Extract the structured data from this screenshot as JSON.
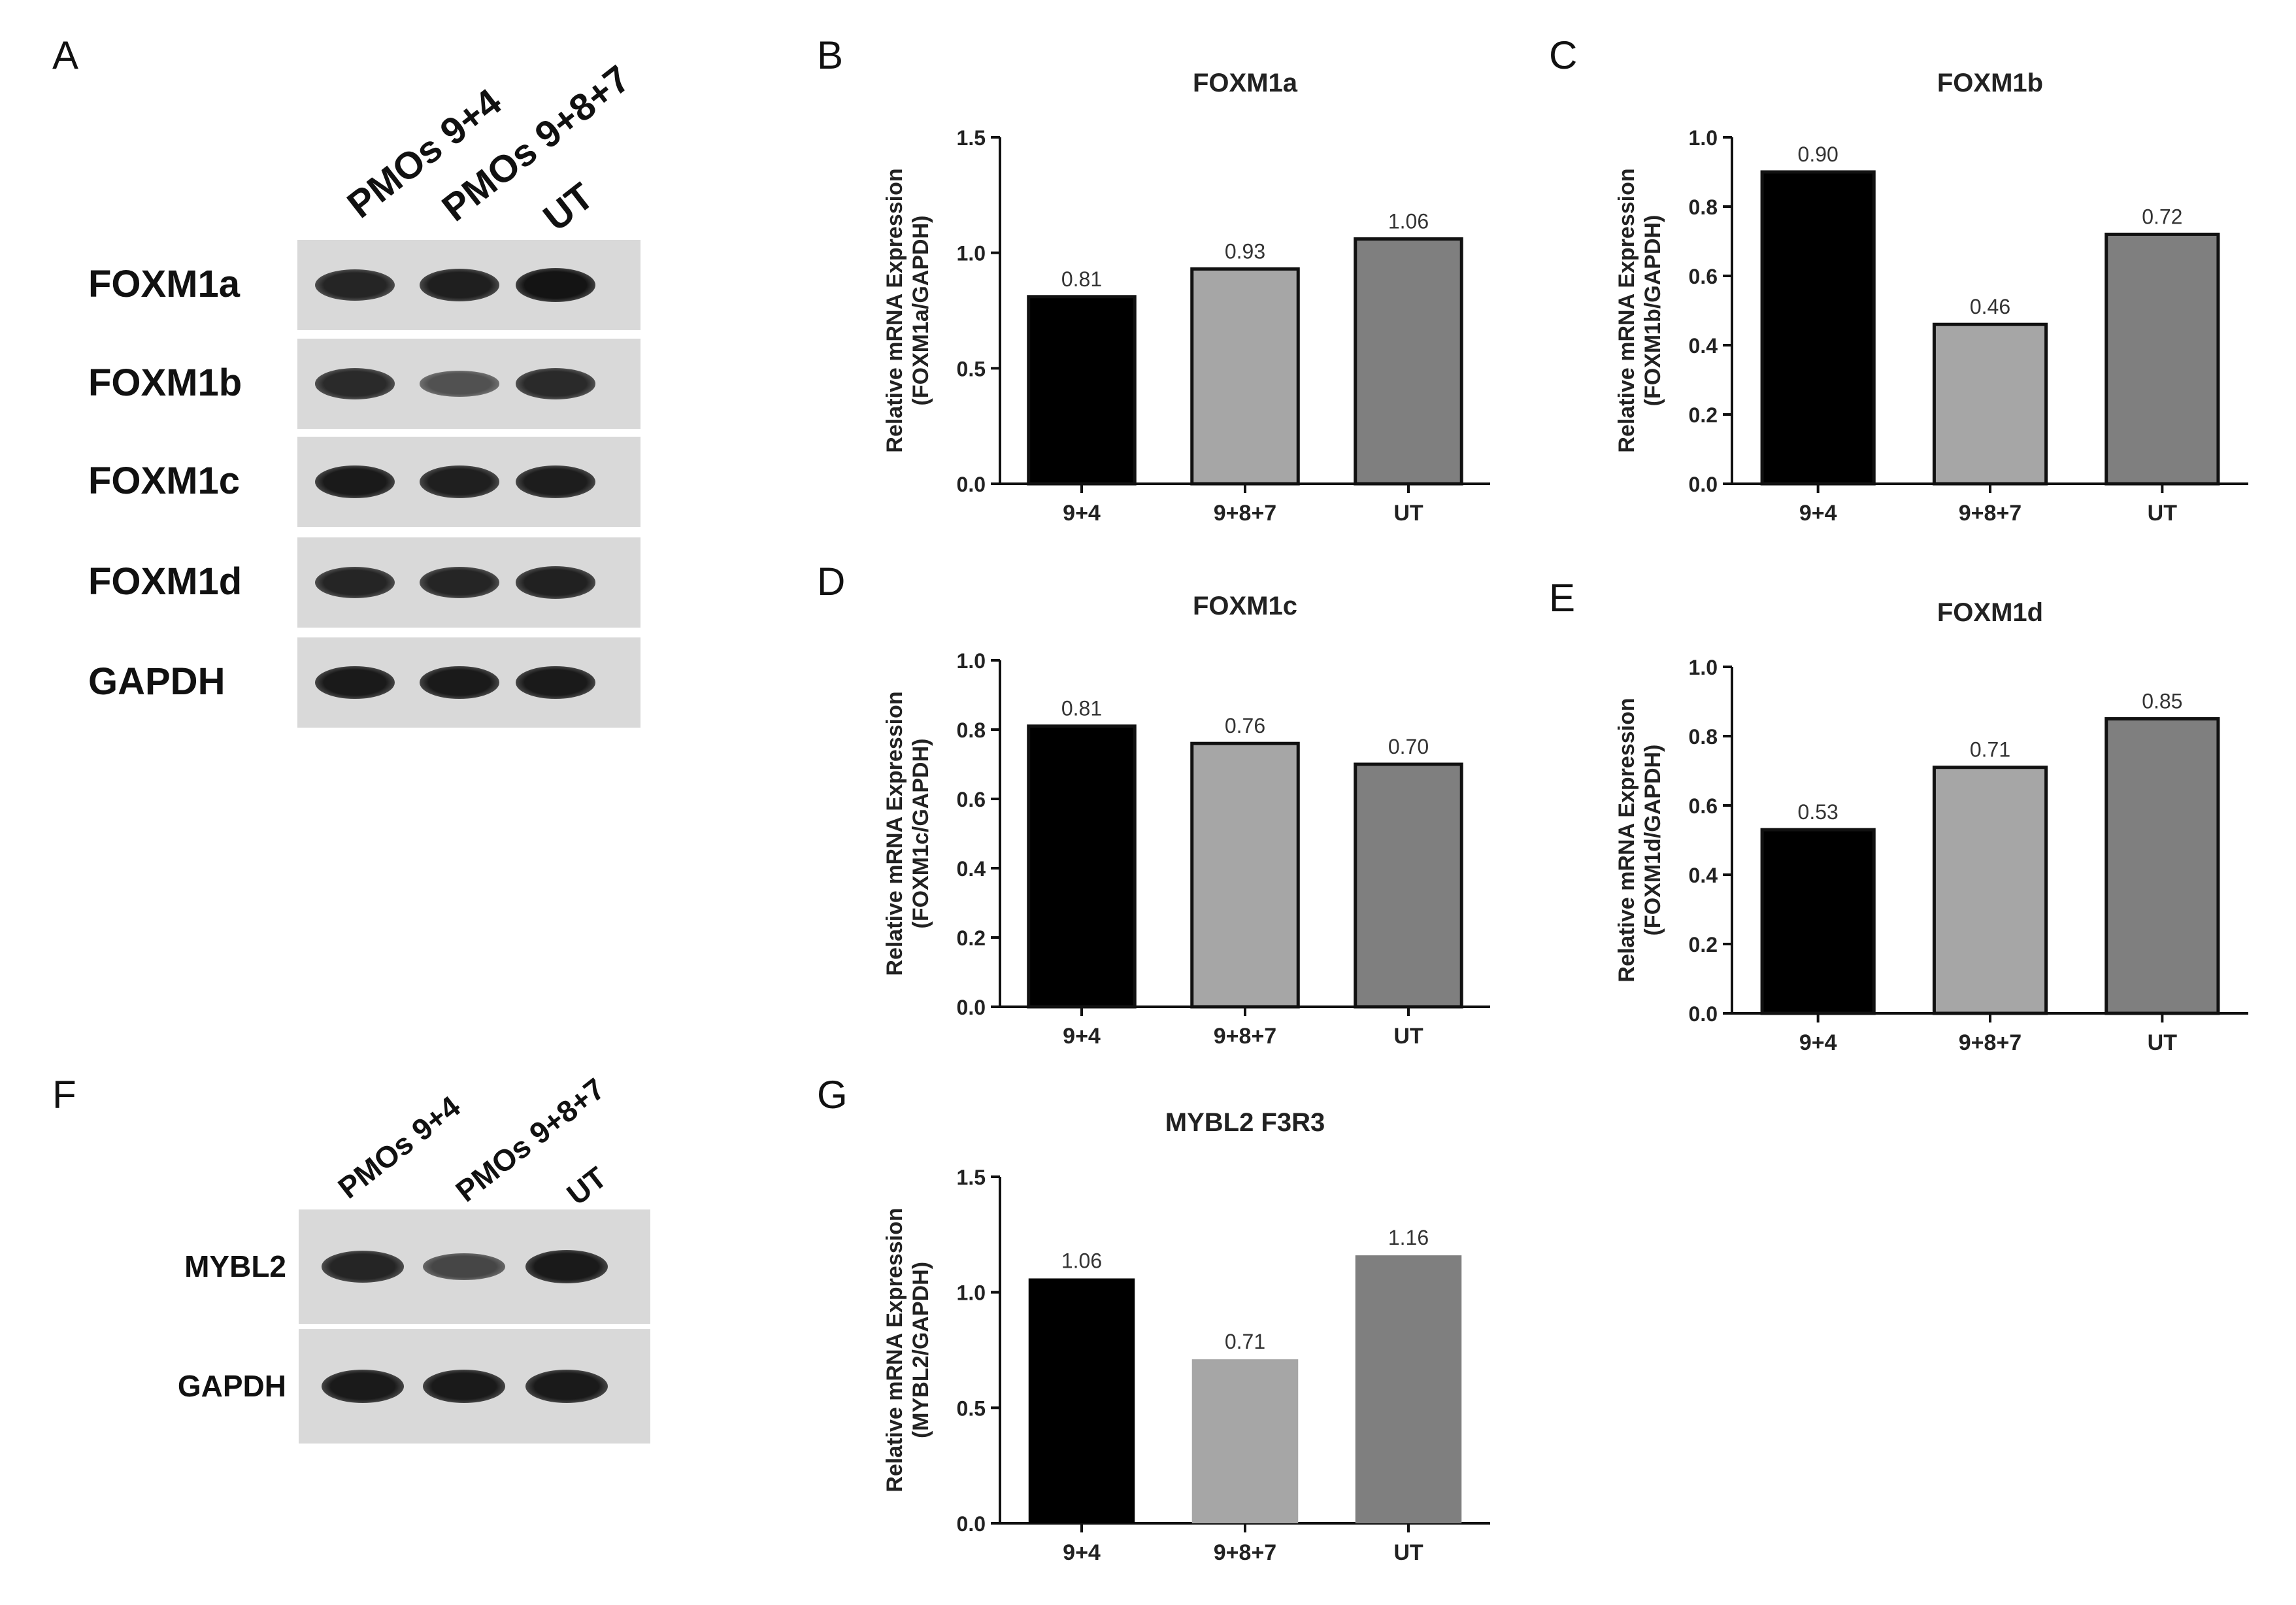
{
  "panel_letters": {
    "A": "A",
    "B": "B",
    "C": "C",
    "D": "D",
    "E": "E",
    "F": "F",
    "G": "G"
  },
  "gel_A": {
    "lanes": [
      "PMOs 9+4",
      "PMOs 9+8+7",
      "UT"
    ],
    "rows": [
      {
        "label": "FOXM1a",
        "intensities": [
          0.85,
          0.9,
          1.0
        ]
      },
      {
        "label": "FOXM1b",
        "intensities": [
          0.8,
          0.45,
          0.8
        ]
      },
      {
        "label": "FOXM1c",
        "intensities": [
          0.95,
          0.9,
          0.92
        ]
      },
      {
        "label": "FOXM1d",
        "intensities": [
          0.85,
          0.85,
          0.88
        ]
      },
      {
        "label": "GAPDH",
        "intensities": [
          0.95,
          0.95,
          0.95
        ]
      }
    ]
  },
  "gel_F": {
    "lanes": [
      "PMOs 9+4",
      "PMOs 9+8+7",
      "UT"
    ],
    "rows": [
      {
        "label": "MYBL2",
        "intensities": [
          0.85,
          0.55,
          0.95
        ]
      },
      {
        "label": "GAPDH",
        "intensities": [
          0.95,
          0.95,
          0.95
        ]
      }
    ]
  },
  "chart_data": [
    {
      "id": "B",
      "type": "bar",
      "title": "FOXM1a",
      "ylabel": [
        "Relative mRNA Expression",
        "(FOXM1a/GAPDH)"
      ],
      "categories": [
        "9+4",
        "9+8+7",
        "UT"
      ],
      "values": [
        0.81,
        0.93,
        1.06
      ],
      "value_labels": [
        "0.81",
        "0.93",
        "1.06"
      ],
      "ylim": [
        0,
        1.5
      ],
      "yticks": [
        "0.0",
        "0.5",
        "1.0",
        "1.5"
      ],
      "bar_colors": [
        "#000000",
        "#a6a6a6",
        "#7f7f7f"
      ],
      "outlined": true
    },
    {
      "id": "C",
      "type": "bar",
      "title": "FOXM1b",
      "ylabel": [
        "Relative mRNA Expression",
        "(FOXM1b/GAPDH)"
      ],
      "categories": [
        "9+4",
        "9+8+7",
        "UT"
      ],
      "values": [
        0.9,
        0.46,
        0.72
      ],
      "value_labels": [
        "0.90",
        "0.46",
        "0.72"
      ],
      "ylim": [
        0,
        1.0
      ],
      "yticks": [
        "0.0",
        "0.2",
        "0.4",
        "0.6",
        "0.8",
        "1.0"
      ],
      "bar_colors": [
        "#000000",
        "#a6a6a6",
        "#7f7f7f"
      ],
      "outlined": true
    },
    {
      "id": "D",
      "type": "bar",
      "title": "FOXM1c",
      "ylabel": [
        "Relative mRNA Expression",
        "(FOXM1c/GAPDH)"
      ],
      "categories": [
        "9+4",
        "9+8+7",
        "UT"
      ],
      "values": [
        0.81,
        0.76,
        0.7
      ],
      "value_labels": [
        "0.81",
        "0.76",
        "0.70"
      ],
      "ylim": [
        0,
        1.0
      ],
      "yticks": [
        "0.0",
        "0.2",
        "0.4",
        "0.6",
        "0.8",
        "1.0"
      ],
      "bar_colors": [
        "#000000",
        "#a6a6a6",
        "#7f7f7f"
      ],
      "outlined": true
    },
    {
      "id": "E",
      "type": "bar",
      "title": "FOXM1d",
      "ylabel": [
        "Relative mRNA Expression",
        "(FOXM1d/GAPDH)"
      ],
      "categories": [
        "9+4",
        "9+8+7",
        "UT"
      ],
      "values": [
        0.53,
        0.71,
        0.85
      ],
      "value_labels": [
        "0.53",
        "0.71",
        "0.85"
      ],
      "ylim": [
        0,
        1.0
      ],
      "yticks": [
        "0.0",
        "0.2",
        "0.4",
        "0.6",
        "0.8",
        "1.0"
      ],
      "bar_colors": [
        "#000000",
        "#a6a6a6",
        "#7f7f7f"
      ],
      "outlined": true
    },
    {
      "id": "G",
      "type": "bar",
      "title": "MYBL2 F3R3",
      "ylabel": [
        "Relative mRNA Expression",
        "(MYBL2/GAPDH)"
      ],
      "categories": [
        "9+4",
        "9+8+7",
        "UT"
      ],
      "values": [
        1.06,
        0.71,
        1.16
      ],
      "value_labels": [
        "1.06",
        "0.71",
        "1.16"
      ],
      "ylim": [
        0,
        1.5
      ],
      "yticks": [
        "0.0",
        "0.5",
        "1.0",
        "1.5"
      ],
      "bar_colors": [
        "#000000",
        "#a6a6a6",
        "#7f7f7f"
      ],
      "outlined": false
    }
  ]
}
